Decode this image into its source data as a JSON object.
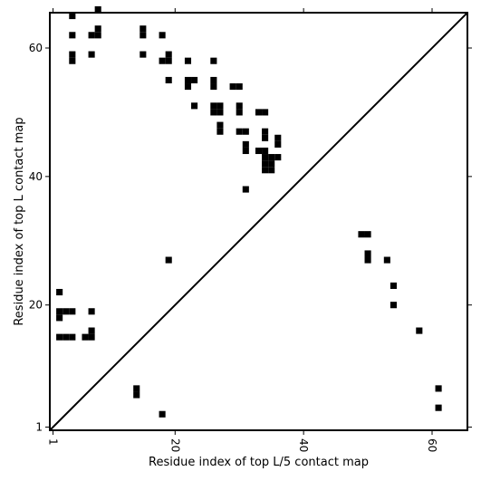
{
  "chart_data": {
    "type": "heatmap",
    "title": "",
    "xlabel": "Residue index of top L/5 contact map",
    "ylabel": "Residue index of top L contact map",
    "xlim": [
      0.5,
      65.5
    ],
    "ylim": [
      0.5,
      65.5
    ],
    "x_ticks": [
      {
        "value": 1,
        "label": "1"
      },
      {
        "value": 20,
        "label": "20"
      },
      {
        "value": 40,
        "label": "40"
      },
      {
        "value": 60,
        "label": "60"
      }
    ],
    "y_ticks": [
      {
        "value": 1,
        "label": "1"
      },
      {
        "value": 20,
        "label": "20"
      },
      {
        "value": 40,
        "label": "40"
      },
      {
        "value": 60,
        "label": "60"
      }
    ],
    "diagonal": true,
    "grid": false,
    "cell_color": "#000000",
    "background": "#ffffff",
    "upper_cells": [
      [
        4,
        65
      ],
      [
        8,
        66
      ],
      [
        4,
        62
      ],
      [
        7,
        62
      ],
      [
        8,
        62
      ],
      [
        8,
        63
      ],
      [
        15,
        63
      ],
      [
        15,
        62
      ],
      [
        18,
        62
      ],
      [
        4,
        59
      ],
      [
        4,
        58
      ],
      [
        7,
        59
      ],
      [
        15,
        59
      ],
      [
        18,
        58
      ],
      [
        19,
        58
      ],
      [
        19,
        59
      ],
      [
        22,
        58
      ],
      [
        26,
        58
      ],
      [
        19,
        55
      ],
      [
        22,
        55
      ],
      [
        23,
        55
      ],
      [
        22,
        54
      ],
      [
        26,
        55
      ],
      [
        26,
        54
      ],
      [
        29,
        54
      ],
      [
        30,
        54
      ],
      [
        23,
        51
      ],
      [
        26,
        51
      ],
      [
        26,
        50
      ],
      [
        27,
        51
      ],
      [
        27,
        50
      ],
      [
        30,
        51
      ],
      [
        30,
        50
      ],
      [
        33,
        50
      ],
      [
        34,
        50
      ],
      [
        27,
        48
      ],
      [
        27,
        47
      ],
      [
        30,
        47
      ],
      [
        31,
        47
      ],
      [
        34,
        47
      ],
      [
        34,
        46
      ],
      [
        36,
        46
      ],
      [
        36,
        45
      ],
      [
        31,
        45
      ],
      [
        31,
        44
      ],
      [
        33,
        44
      ],
      [
        34,
        44
      ],
      [
        34,
        43
      ],
      [
        34,
        42
      ],
      [
        35,
        42
      ],
      [
        35,
        43
      ],
      [
        36,
        43
      ],
      [
        34,
        41
      ],
      [
        35,
        41
      ],
      [
        31,
        38
      ]
    ],
    "lower_cells": [
      [
        19,
        27
      ],
      [
        49,
        31
      ],
      [
        50,
        31
      ],
      [
        50,
        28
      ],
      [
        50,
        27
      ],
      [
        53,
        27
      ],
      [
        54,
        23
      ],
      [
        54,
        20
      ],
      [
        58,
        16
      ],
      [
        61,
        7
      ],
      [
        61,
        4
      ],
      [
        2,
        22
      ],
      [
        2,
        19
      ],
      [
        2,
        18
      ],
      [
        3,
        19
      ],
      [
        4,
        19
      ],
      [
        7,
        19
      ],
      [
        2,
        15
      ],
      [
        3,
        15
      ],
      [
        4,
        15
      ],
      [
        6,
        15
      ],
      [
        7,
        15
      ],
      [
        7,
        16
      ],
      [
        14,
        7
      ],
      [
        14,
        6
      ],
      [
        18,
        3
      ]
    ]
  }
}
